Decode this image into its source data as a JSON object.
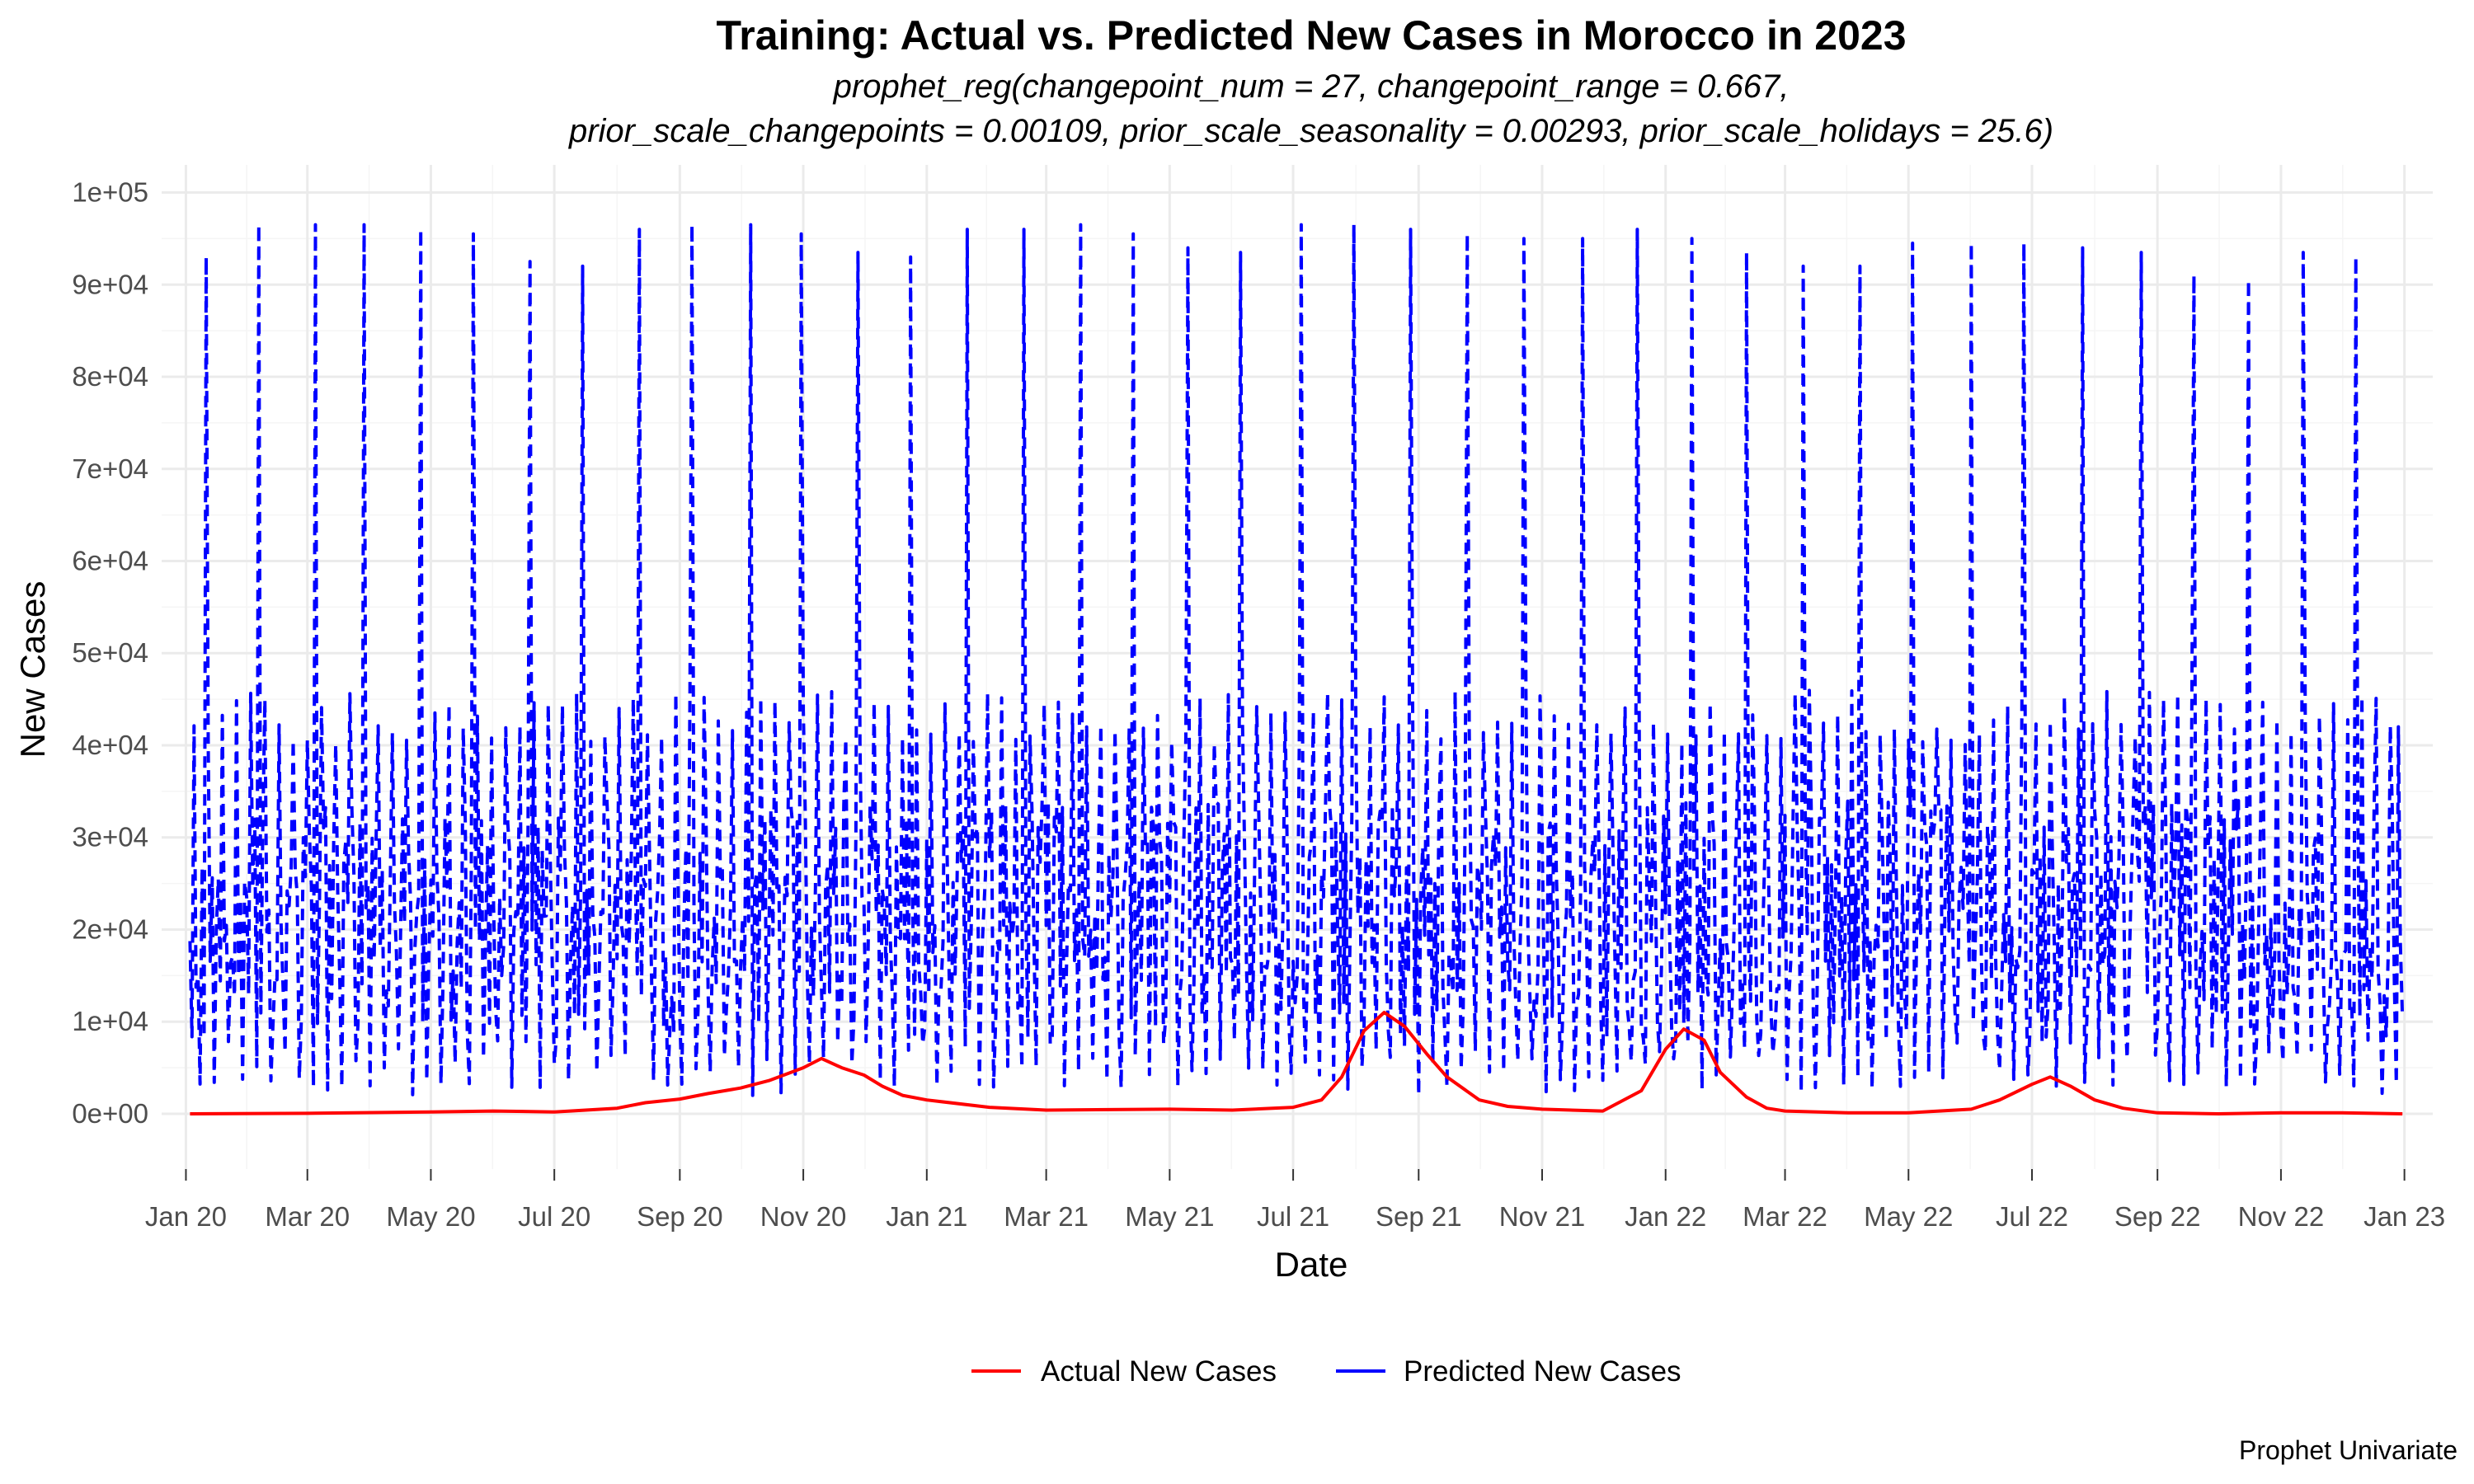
{
  "chart_data": {
    "type": "line",
    "title": "Training: Actual vs. Predicted New Cases in Morocco in 2023",
    "subtitle_line1": "prophet_reg(changepoint_num = 27, changepoint_range = 0.667,",
    "subtitle_line2": "prior_scale_changepoints = 0.00109, prior_scale_seasonality = 0.00293, prior_scale_holidays = 25.6)",
    "xlabel": "Date",
    "ylabel": "New Cases",
    "caption": "Prophet Univariate",
    "xlim": [
      "2019-12-20",
      "2023-01-15"
    ],
    "ylim": [
      -6000,
      103000
    ],
    "x_ticks": [
      {
        "date": "2020-01-01",
        "label": "Jan 20"
      },
      {
        "date": "2020-03-01",
        "label": "Mar 20"
      },
      {
        "date": "2020-05-01",
        "label": "May 20"
      },
      {
        "date": "2020-07-01",
        "label": "Jul 20"
      },
      {
        "date": "2020-09-01",
        "label": "Sep 20"
      },
      {
        "date": "2020-11-01",
        "label": "Nov 20"
      },
      {
        "date": "2021-01-01",
        "label": "Jan 21"
      },
      {
        "date": "2021-03-01",
        "label": "Mar 21"
      },
      {
        "date": "2021-05-01",
        "label": "May 21"
      },
      {
        "date": "2021-07-01",
        "label": "Jul 21"
      },
      {
        "date": "2021-09-01",
        "label": "Sep 21"
      },
      {
        "date": "2021-11-01",
        "label": "Nov 21"
      },
      {
        "date": "2022-01-01",
        "label": "Jan 22"
      },
      {
        "date": "2022-03-01",
        "label": "Mar 22"
      },
      {
        "date": "2022-05-01",
        "label": "May 22"
      },
      {
        "date": "2022-07-01",
        "label": "Jul 22"
      },
      {
        "date": "2022-09-01",
        "label": "Sep 22"
      },
      {
        "date": "2022-11-01",
        "label": "Nov 22"
      },
      {
        "date": "2023-01-01",
        "label": "Jan 23"
      }
    ],
    "y_ticks": [
      {
        "value": 0,
        "label": "0e+00"
      },
      {
        "value": 10000,
        "label": "1e+04"
      },
      {
        "value": 20000,
        "label": "2e+04"
      },
      {
        "value": 30000,
        "label": "3e+04"
      },
      {
        "value": 40000,
        "label": "4e+04"
      },
      {
        "value": 50000,
        "label": "5e+04"
      },
      {
        "value": 60000,
        "label": "6e+04"
      },
      {
        "value": 70000,
        "label": "7e+04"
      },
      {
        "value": 80000,
        "label": "8e+04"
      },
      {
        "value": 90000,
        "label": "9e+04"
      },
      {
        "value": 100000,
        "label": "1e+05"
      }
    ],
    "grid": true,
    "legend_position": "bottom",
    "series": [
      {
        "name": "Actual New Cases",
        "color": "#ff0000",
        "line_style": "solid",
        "x": [
          "2020-01-03",
          "2020-03-01",
          "2020-05-01",
          "2020-06-01",
          "2020-07-01",
          "2020-08-01",
          "2020-08-15",
          "2020-09-01",
          "2020-09-15",
          "2020-10-01",
          "2020-10-15",
          "2020-11-01",
          "2020-11-10",
          "2020-11-20",
          "2020-12-01",
          "2020-12-10",
          "2020-12-15",
          "2020-12-20",
          "2021-01-01",
          "2021-02-01",
          "2021-03-01",
          "2021-04-01",
          "2021-05-01",
          "2021-06-01",
          "2021-07-01",
          "2021-07-15",
          "2021-07-25",
          "2021-08-05",
          "2021-08-15",
          "2021-08-25",
          "2021-09-05",
          "2021-09-15",
          "2021-10-01",
          "2021-10-15",
          "2021-11-01",
          "2021-12-01",
          "2021-12-20",
          "2022-01-01",
          "2022-01-10",
          "2022-01-20",
          "2022-01-28",
          "2022-02-10",
          "2022-02-20",
          "2022-03-01",
          "2022-04-01",
          "2022-05-01",
          "2022-06-01",
          "2022-06-15",
          "2022-07-01",
          "2022-07-10",
          "2022-07-20",
          "2022-08-01",
          "2022-08-15",
          "2022-09-01",
          "2022-10-01",
          "2022-11-01",
          "2022-12-01",
          "2022-12-31"
        ],
        "y": [
          0,
          50,
          200,
          300,
          200,
          600,
          1200,
          1600,
          2200,
          2800,
          3600,
          5000,
          6000,
          5000,
          4200,
          3000,
          2500,
          2000,
          1500,
          700,
          400,
          450,
          500,
          400,
          700,
          1500,
          4000,
          9000,
          11000,
          9500,
          6500,
          4000,
          1500,
          800,
          500,
          300,
          2500,
          7000,
          9200,
          8000,
          4500,
          1800,
          600,
          300,
          100,
          100,
          500,
          1500,
          3200,
          4000,
          3000,
          1500,
          600,
          100,
          0,
          100,
          100,
          0
        ]
      },
      {
        "name": "Predicted New Cases",
        "color": "#0000ff",
        "line_style": "dashed",
        "weekly_spike_dates": [
          "2020-01-11",
          "2020-02-06",
          "2020-03-05",
          "2020-03-29",
          "2020-04-26",
          "2020-05-22",
          "2020-06-19",
          "2020-07-15",
          "2020-08-12",
          "2020-09-07",
          "2020-10-06",
          "2020-10-31",
          "2020-11-28",
          "2020-12-24",
          "2021-01-21",
          "2021-02-18",
          "2021-03-18",
          "2021-04-13",
          "2021-05-10",
          "2021-06-05",
          "2021-07-05",
          "2021-07-31",
          "2021-08-28",
          "2021-09-25",
          "2021-10-23",
          "2021-11-21",
          "2021-12-18",
          "2022-01-14",
          "2022-02-10",
          "2022-03-10",
          "2022-04-07",
          "2022-05-03",
          "2022-06-01",
          "2022-06-27",
          "2022-07-26",
          "2022-08-24",
          "2022-09-19",
          "2022-10-16",
          "2022-11-12",
          "2022-12-08",
          "2022-12-29"
        ],
        "weekly_spike_values": [
          93000,
          96500,
          96500,
          96500,
          96000,
          95500,
          92500,
          92000,
          96000,
          96500,
          96500,
          95500,
          93500,
          93000,
          96000,
          96000,
          96500,
          95500,
          94000,
          93500,
          96500,
          96500,
          96000,
          95500,
          95000,
          95000,
          96000,
          95000,
          93500,
          92000,
          92000,
          94500,
          94500,
          94500,
          94000,
          93500,
          91000,
          90500,
          93500,
          93000,
          42000
        ],
        "daily_peak_range": [
          40000,
          46000
        ],
        "daily_low_range": [
          2000,
          8000
        ]
      }
    ]
  }
}
